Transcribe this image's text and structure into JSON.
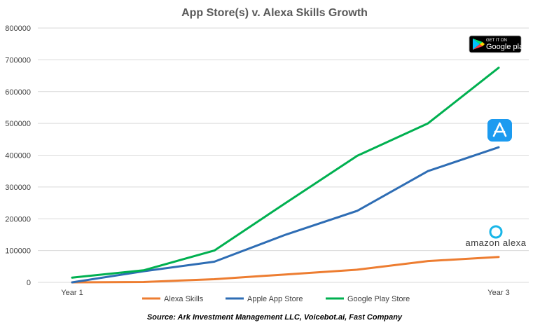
{
  "chart_data": {
    "type": "line",
    "title": "App Store(s) v. Alexa Skills Growth",
    "x_tick_labels": [
      "Year 1",
      "Year 3"
    ],
    "x": [
      0,
      1,
      2,
      3,
      4,
      5,
      6
    ],
    "ylim": [
      0,
      800000
    ],
    "y_ticks": [
      "0",
      "100000",
      "200000",
      "300000",
      "400000",
      "500000",
      "600000",
      "700000",
      "800000"
    ],
    "grid": true,
    "legend_position": "bottom",
    "series": [
      {
        "name": "Alexa Skills",
        "color": "#ED7D31",
        "values": [
          0,
          1000,
          10000,
          25000,
          40000,
          67000,
          80000
        ]
      },
      {
        "name": "Apple App Store",
        "color": "#2E6DB4",
        "values": [
          0,
          35000,
          65000,
          150000,
          225000,
          350000,
          425000
        ]
      },
      {
        "name": "Google Play Store",
        "color": "#00B050",
        "values": [
          15000,
          38000,
          100000,
          250000,
          398000,
          500000,
          675000
        ]
      }
    ],
    "source": "Source: Ark Investment Management LLC, Voicebot.ai, Fast Company"
  },
  "logos": {
    "google_play": {
      "small": "GET IT ON",
      "big": "Google play",
      "icon": "google-play-icon"
    },
    "app_store": {
      "icon": "app-store-icon"
    },
    "amazon_alexa": {
      "text": "amazon alexa",
      "icon": "alexa-ring-icon"
    }
  }
}
